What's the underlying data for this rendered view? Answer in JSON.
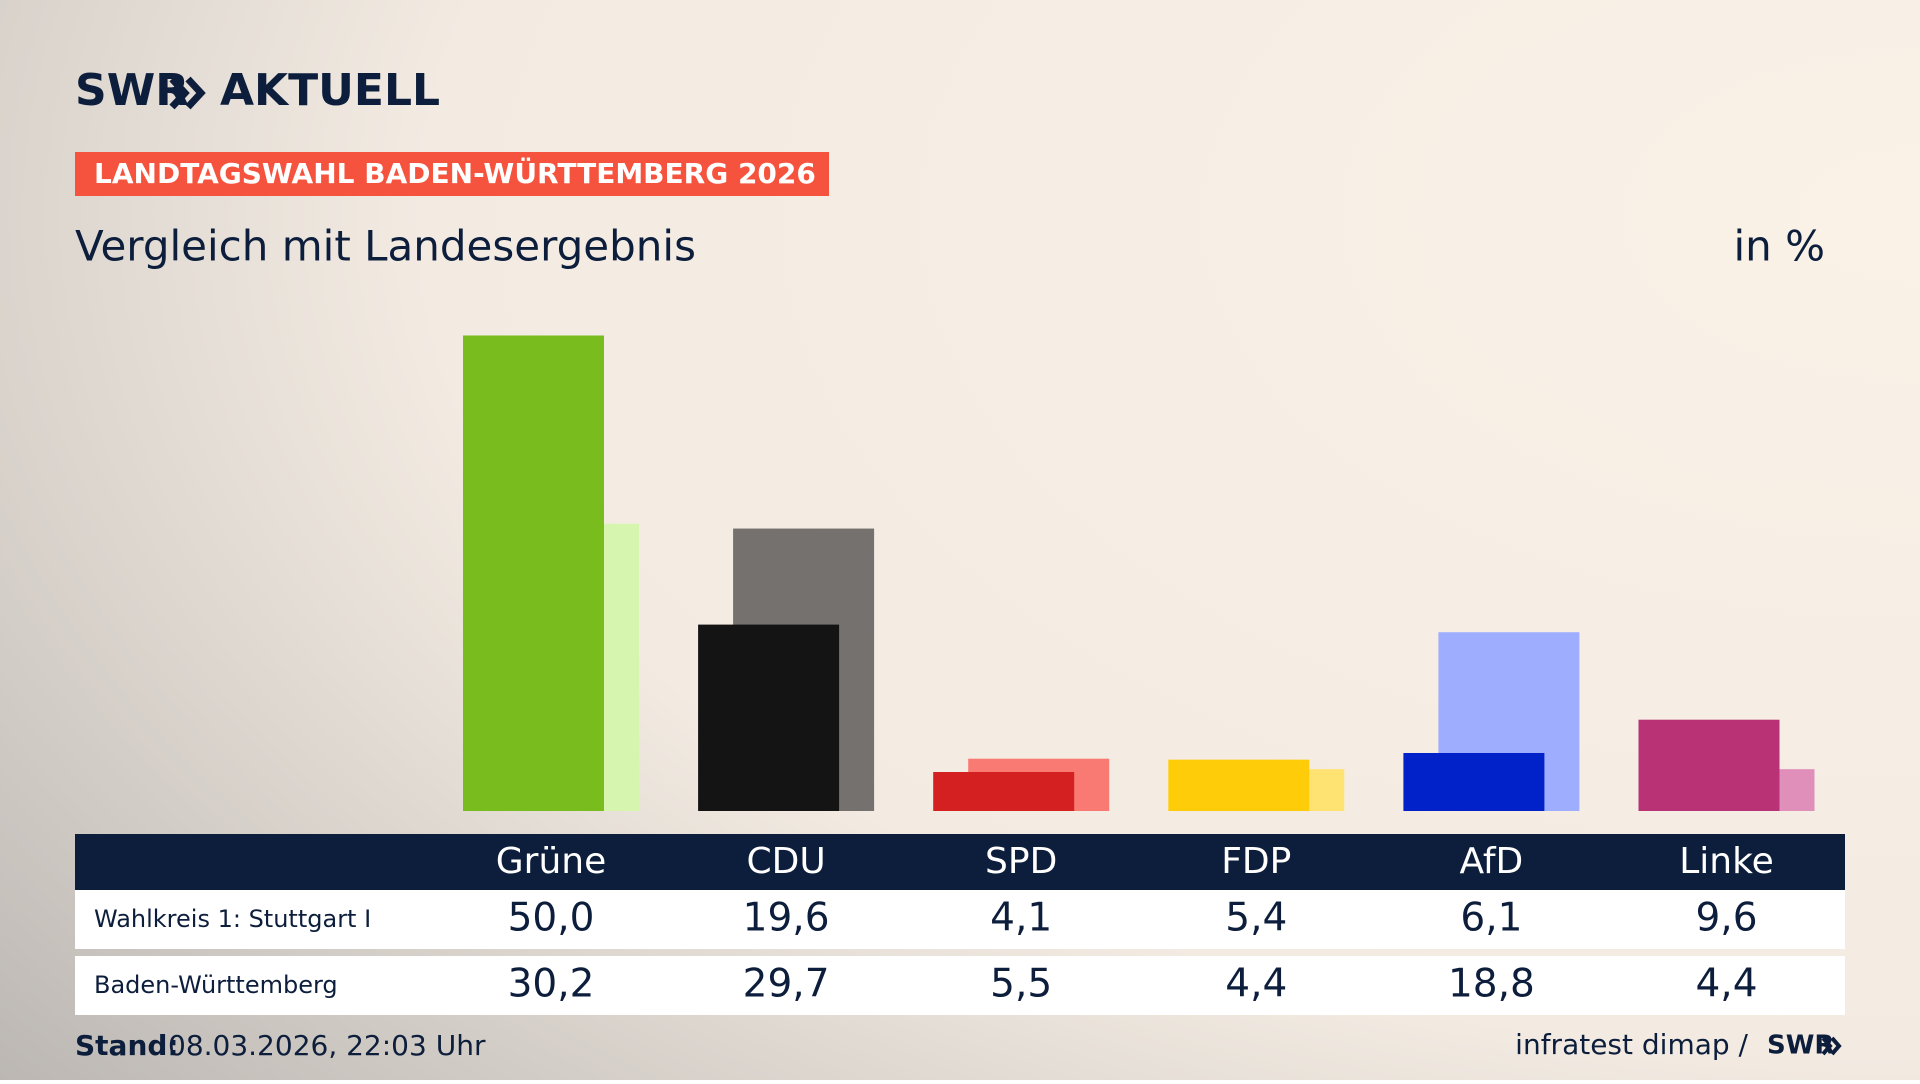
{
  "header": {
    "logo": "SWR",
    "brand": "AKTUELL"
  },
  "chart_data": {
    "type": "bar",
    "tag": "LANDTAGSWAHL BADEN-WÜRTTEMBERG 2026",
    "title": "Vergleich mit Landesergebnis",
    "unit": "in %",
    "categories": [
      "Grüne",
      "CDU",
      "SPD",
      "FDP",
      "AfD",
      "Linke"
    ],
    "series": [
      {
        "name": "Wahlkreis 1: Stuttgart I",
        "colors": [
          "#78bc1e",
          "#141414",
          "#d42020",
          "#ffcc0a",
          "#0022c8",
          "#b83275"
        ],
        "values": [
          50.0,
          19.6,
          4.1,
          5.4,
          6.1,
          9.6
        ],
        "value_labels": [
          "50,0",
          "19,6",
          "4,1",
          "5,4",
          "6,1",
          "9,6"
        ]
      },
      {
        "name": "Baden-Württemberg",
        "colors": [
          "#d6f5ae",
          "#75716e",
          "#f87a72",
          "#ffe372",
          "#9fadff",
          "#e08fbb"
        ],
        "values": [
          30.2,
          29.7,
          5.5,
          4.4,
          18.8,
          4.4
        ],
        "value_labels": [
          "30,2",
          "29,7",
          "5,5",
          "4,4",
          "18,8",
          "4,4"
        ]
      }
    ]
  },
  "footer": {
    "stand_label": "Stand:",
    "stand": "08.03.2026, 22:03 Uhr",
    "source": "infratest dimap /",
    "source_logo": "SWR"
  }
}
